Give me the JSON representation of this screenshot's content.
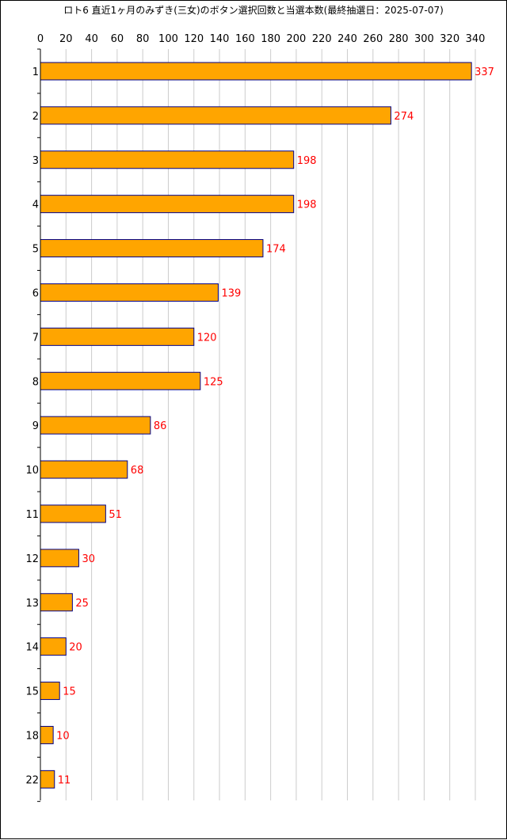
{
  "chart_data": {
    "type": "bar",
    "orientation": "horizontal",
    "title": "ロト6 直近1ヶ月のみずき(三女)のボタン選択回数と当選本数(最終抽選日：2025-07-07)",
    "xlabel": "",
    "ylabel": "",
    "xlim": [
      0,
      340
    ],
    "x_ticks": [
      0,
      20,
      40,
      60,
      80,
      100,
      120,
      140,
      160,
      180,
      200,
      220,
      240,
      260,
      280,
      300,
      320,
      340
    ],
    "categories": [
      "1",
      "2",
      "3",
      "4",
      "5",
      "6",
      "7",
      "8",
      "9",
      "10",
      "11",
      "12",
      "13",
      "14",
      "15",
      "18",
      "22"
    ],
    "values": [
      337,
      274,
      198,
      198,
      174,
      139,
      120,
      125,
      86,
      68,
      51,
      30,
      25,
      20,
      15,
      10,
      11
    ],
    "grid": "vertical",
    "legend": "none",
    "colors": {
      "bar_fill": "#FFA500",
      "bar_stroke": "#00008B",
      "value_label": "#FF0000",
      "grid": "#CCCCCC",
      "axis": "#000000"
    }
  }
}
